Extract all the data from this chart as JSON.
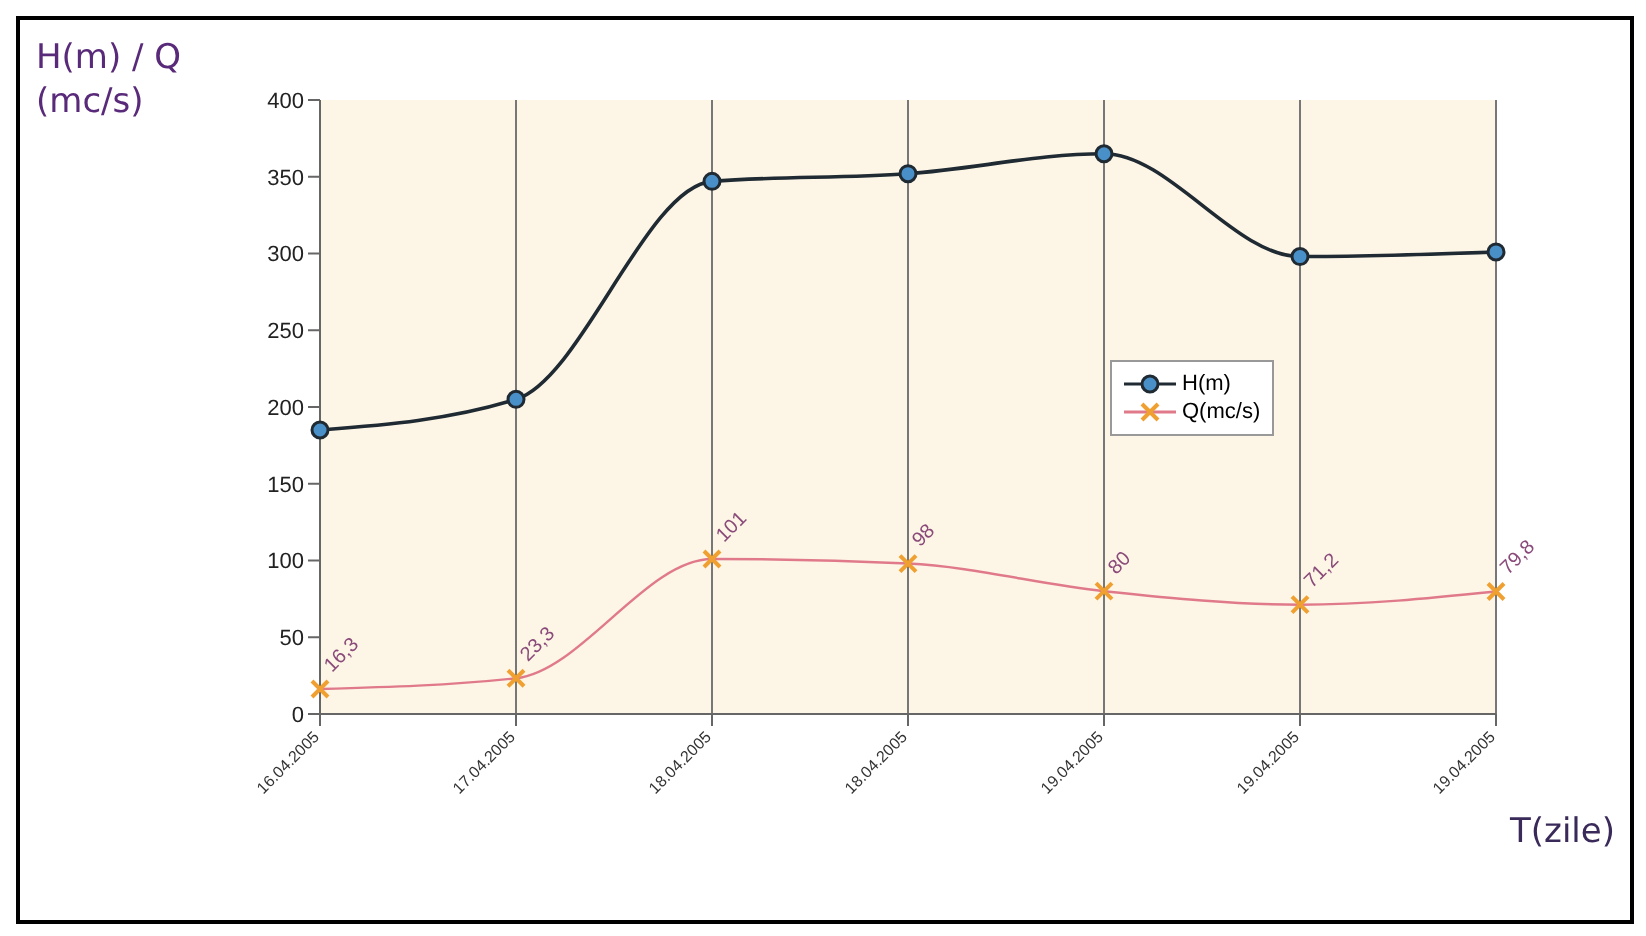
{
  "chart_data": {
    "type": "line",
    "ylabel": "H(m) / Q (mc/s)",
    "xlabel": "T(zile)",
    "categories": [
      "16.04.2005",
      "17.04.2005",
      "18.04.2005",
      "18.04.2005",
      "19.04.2005",
      "19.04.2005",
      "19.04.2005"
    ],
    "series": [
      {
        "name": "H(m)",
        "color": "#1f2a33",
        "marker": "circle",
        "values": [
          185,
          205,
          347,
          352,
          365,
          298,
          301
        ]
      },
      {
        "name": "Q(mc/s)",
        "color": "#e07a8a",
        "marker": "cross",
        "values": [
          16.3,
          23.3,
          101,
          98,
          80,
          71.2,
          79.8
        ],
        "value_labels": [
          "16,3",
          "23,3",
          "101",
          "98",
          "80",
          "71,2",
          "79,8"
        ]
      }
    ],
    "ylim": [
      0,
      400
    ],
    "yticks": [
      0,
      50,
      100,
      150,
      200,
      250,
      300,
      350,
      400
    ],
    "grid": "x",
    "legend": "right"
  }
}
